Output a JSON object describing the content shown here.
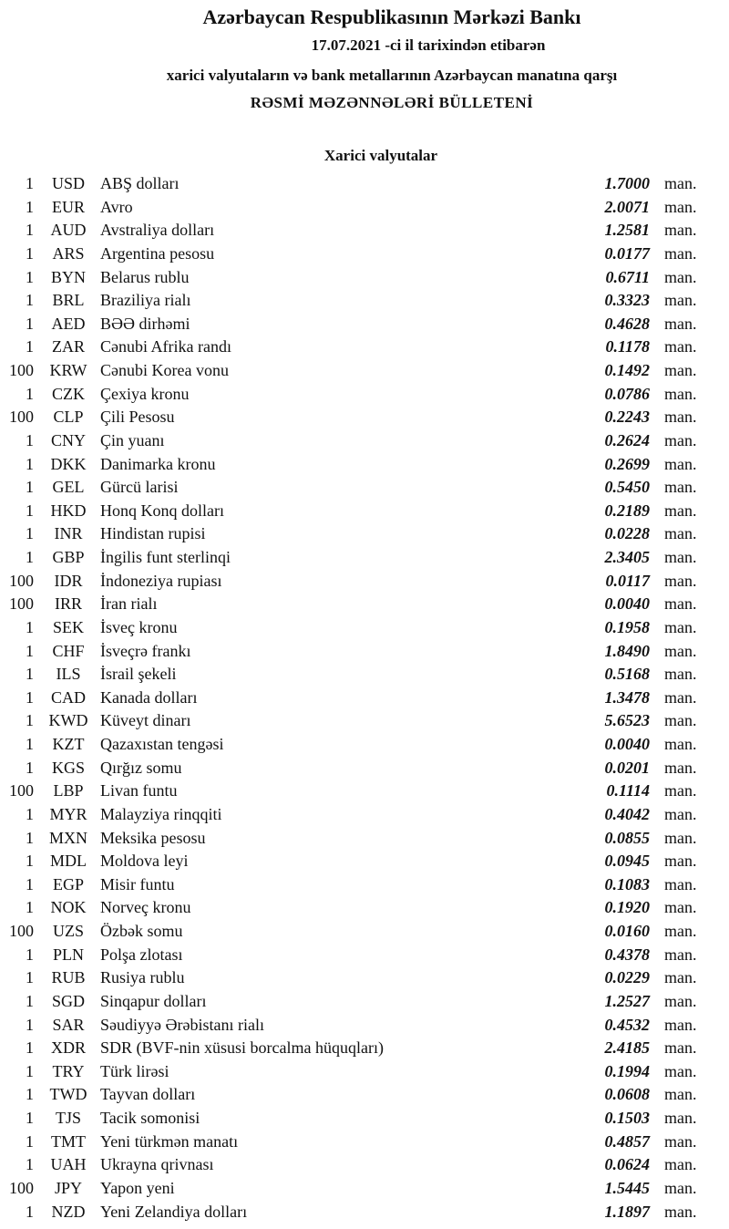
{
  "header": {
    "title": "Azərbaycan Respublikasının Mərkəzi Bankı",
    "date_line": "17.07.2021  -ci il tarixindən etibarən",
    "subtitle": "xarici valyutaların və bank metallarının Azərbaycan manatına qarşı",
    "bulletin": "RƏSMİ MƏZƏNNƏLƏRİ BÜLLETENİ"
  },
  "section_title": "Xarici valyutalar",
  "unit_label": "man.",
  "rows": [
    {
      "nominal": "1",
      "code": "USD",
      "name": "ABŞ dolları",
      "rate": "1.7000"
    },
    {
      "nominal": "1",
      "code": "EUR",
      "name": "Avro",
      "rate": "2.0071"
    },
    {
      "nominal": "1",
      "code": "AUD",
      "name": "Avstraliya dolları",
      "rate": "1.2581"
    },
    {
      "nominal": "1",
      "code": "ARS",
      "name": "Argentina pesosu",
      "rate": "0.0177"
    },
    {
      "nominal": "1",
      "code": "BYN",
      "name": "Belarus rublu",
      "rate": "0.6711"
    },
    {
      "nominal": "1",
      "code": "BRL",
      "name": "Braziliya rialı",
      "rate": "0.3323"
    },
    {
      "nominal": "1",
      "code": "AED",
      "name": "BƏƏ dirhəmi",
      "rate": "0.4628"
    },
    {
      "nominal": "1",
      "code": "ZAR",
      "name": "Cənubi Afrika randı",
      "rate": "0.1178"
    },
    {
      "nominal": "100",
      "code": "KRW",
      "name": "Cənubi Korea vonu",
      "rate": "0.1492"
    },
    {
      "nominal": "1",
      "code": "CZK",
      "name": "Çexiya kronu",
      "rate": "0.0786"
    },
    {
      "nominal": "100",
      "code": "CLP",
      "name": "Çili Pesosu",
      "rate": "0.2243"
    },
    {
      "nominal": "1",
      "code": "CNY",
      "name": "Çin yuanı",
      "rate": "0.2624"
    },
    {
      "nominal": "1",
      "code": "DKK",
      "name": "Danimarka kronu",
      "rate": "0.2699"
    },
    {
      "nominal": "1",
      "code": "GEL",
      "name": "Gürcü larisi",
      "rate": "0.5450"
    },
    {
      "nominal": "1",
      "code": "HKD",
      "name": "Honq Konq dolları",
      "rate": "0.2189"
    },
    {
      "nominal": "1",
      "code": "INR",
      "name": "Hindistan rupisi",
      "rate": "0.0228"
    },
    {
      "nominal": "1",
      "code": "GBP",
      "name": "İngilis funt sterlinqi",
      "rate": "2.3405"
    },
    {
      "nominal": "100",
      "code": "IDR",
      "name": "İndoneziya rupiası",
      "rate": "0.0117"
    },
    {
      "nominal": "100",
      "code": "IRR",
      "name": "İran rialı",
      "rate": "0.0040"
    },
    {
      "nominal": "1",
      "code": "SEK",
      "name": "İsveç kronu",
      "rate": "0.1958"
    },
    {
      "nominal": "1",
      "code": "CHF",
      "name": "İsveçrə frankı",
      "rate": "1.8490"
    },
    {
      "nominal": "1",
      "code": "ILS",
      "name": "İsrail şekeli",
      "rate": "0.5168"
    },
    {
      "nominal": "1",
      "code": "CAD",
      "name": "Kanada dolları",
      "rate": "1.3478"
    },
    {
      "nominal": "1",
      "code": "KWD",
      "name": "Küveyt dinarı",
      "rate": "5.6523"
    },
    {
      "nominal": "1",
      "code": "KZT",
      "name": "Qazaxıstan tengəsi",
      "rate": "0.0040"
    },
    {
      "nominal": "1",
      "code": "KGS",
      "name": "Qırğız somu",
      "rate": "0.0201"
    },
    {
      "nominal": "100",
      "code": "LBP",
      "name": "Livan funtu",
      "rate": "0.1114"
    },
    {
      "nominal": "1",
      "code": "MYR",
      "name": "Malayziya rinqqiti",
      "rate": "0.4042"
    },
    {
      "nominal": "1",
      "code": "MXN",
      "name": "Meksika pesosu",
      "rate": "0.0855"
    },
    {
      "nominal": "1",
      "code": "MDL",
      "name": "Moldova leyi",
      "rate": "0.0945"
    },
    {
      "nominal": "1",
      "code": "EGP",
      "name": "Misir funtu",
      "rate": "0.1083"
    },
    {
      "nominal": "1",
      "code": "NOK",
      "name": "Norveç kronu",
      "rate": "0.1920"
    },
    {
      "nominal": "100",
      "code": "UZS",
      "name": "Özbək somu",
      "rate": "0.0160"
    },
    {
      "nominal": "1",
      "code": "PLN",
      "name": "Polşa zlotası",
      "rate": "0.4378"
    },
    {
      "nominal": "1",
      "code": "RUB",
      "name": "Rusiya rublu",
      "rate": "0.0229"
    },
    {
      "nominal": "1",
      "code": "SGD",
      "name": "Sinqapur dolları",
      "rate": "1.2527"
    },
    {
      "nominal": "1",
      "code": "SAR",
      "name": "Səudiyyə Ərəbistanı rialı",
      "rate": "0.4532"
    },
    {
      "nominal": "1",
      "code": "XDR",
      "name": "SDR (BVF-nin xüsusi borcalma hüquqları)",
      "rate": "2.4185"
    },
    {
      "nominal": "1",
      "code": "TRY",
      "name": "Türk lirəsi",
      "rate": "0.1994"
    },
    {
      "nominal": "1",
      "code": "TWD",
      "name": "Tayvan dolları",
      "rate": "0.0608"
    },
    {
      "nominal": "1",
      "code": "TJS",
      "name": "Tacik somonisi",
      "rate": "0.1503"
    },
    {
      "nominal": "1",
      "code": "TMT",
      "name": "Yeni türkmən manatı",
      "rate": "0.4857"
    },
    {
      "nominal": "1",
      "code": "UAH",
      "name": "Ukrayna qrivnası",
      "rate": "0.0624"
    },
    {
      "nominal": "100",
      "code": "JPY",
      "name": "Yapon yeni",
      "rate": "1.5445"
    },
    {
      "nominal": "1",
      "code": "NZD",
      "name": "Yeni Zelandiya dolları",
      "rate": "1.1897"
    }
  ]
}
